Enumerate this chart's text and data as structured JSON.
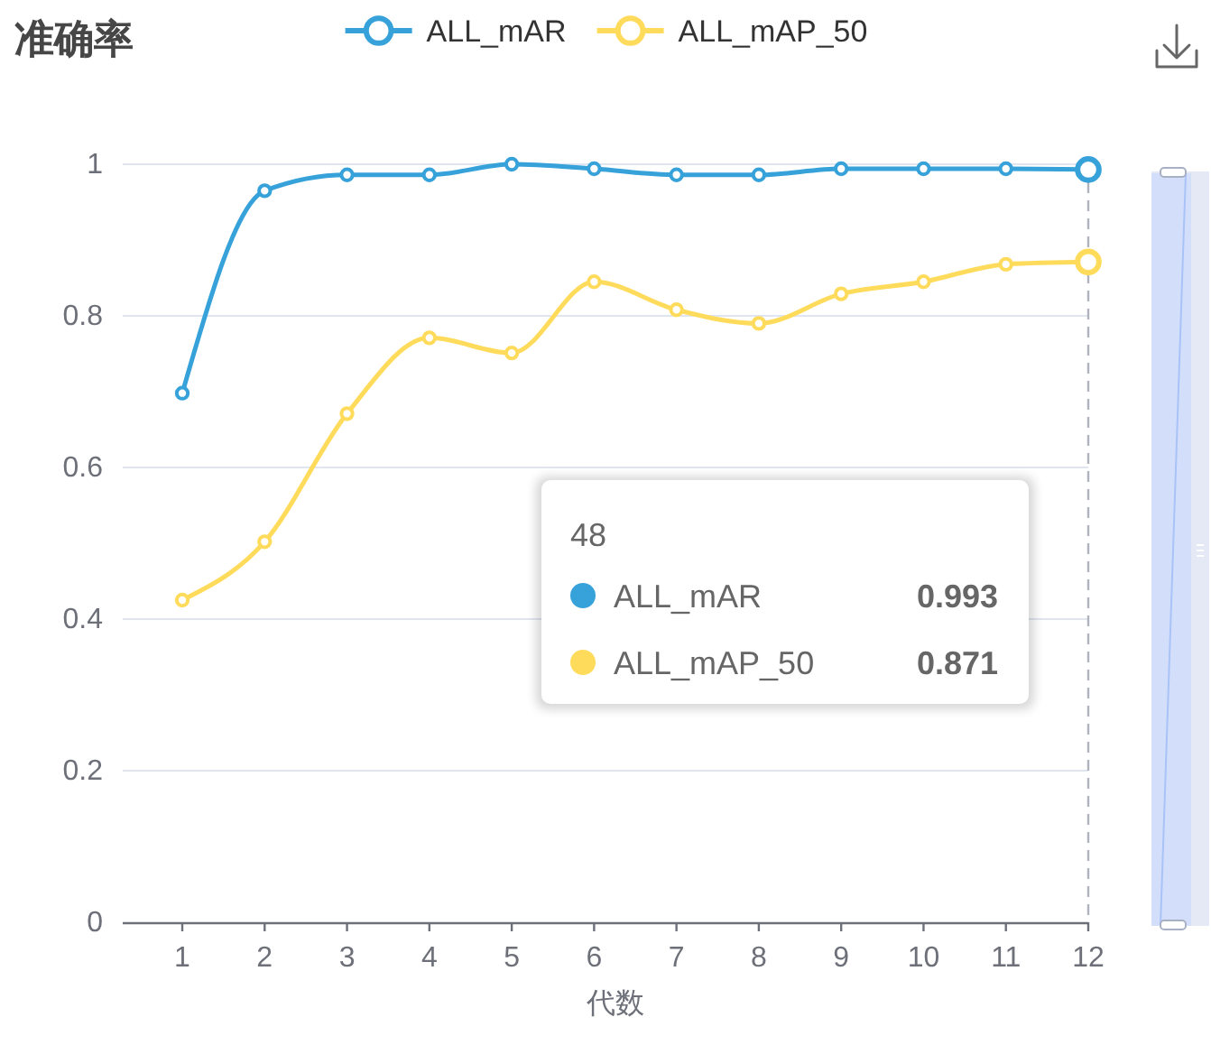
{
  "chart_data": {
    "type": "line",
    "title": "准确率",
    "xlabel": "代数",
    "categories": [
      "1",
      "2",
      "3",
      "4",
      "5",
      "6",
      "7",
      "8",
      "9",
      "10",
      "11",
      "12"
    ],
    "series": [
      {
        "name": "ALL_mAR",
        "color": "#37a2da",
        "values": [
          0.698,
          0.965,
          0.986,
          0.986,
          1.0,
          0.994,
          0.986,
          0.986,
          0.994,
          0.994,
          0.994,
          0.993
        ]
      },
      {
        "name": "ALL_mAP_50",
        "color": "#ffdb5c",
        "values": [
          0.425,
          0.502,
          0.671,
          0.771,
          0.751,
          0.845,
          0.808,
          0.79,
          0.829,
          0.845,
          0.868,
          0.871
        ]
      }
    ],
    "ylim": [
      0,
      1
    ],
    "yticks": [
      0,
      0.2,
      0.4,
      0.6,
      0.8,
      1
    ],
    "grid": "y",
    "legend": "top",
    "marker": "circle",
    "line_style": "solid",
    "ref_lines": [
      {
        "axis": "x",
        "value": "12",
        "color": "#b0b3bd",
        "line_style": "dashed"
      }
    ],
    "annotations": [
      "48",
      "0.993",
      "0.871"
    ]
  }
}
